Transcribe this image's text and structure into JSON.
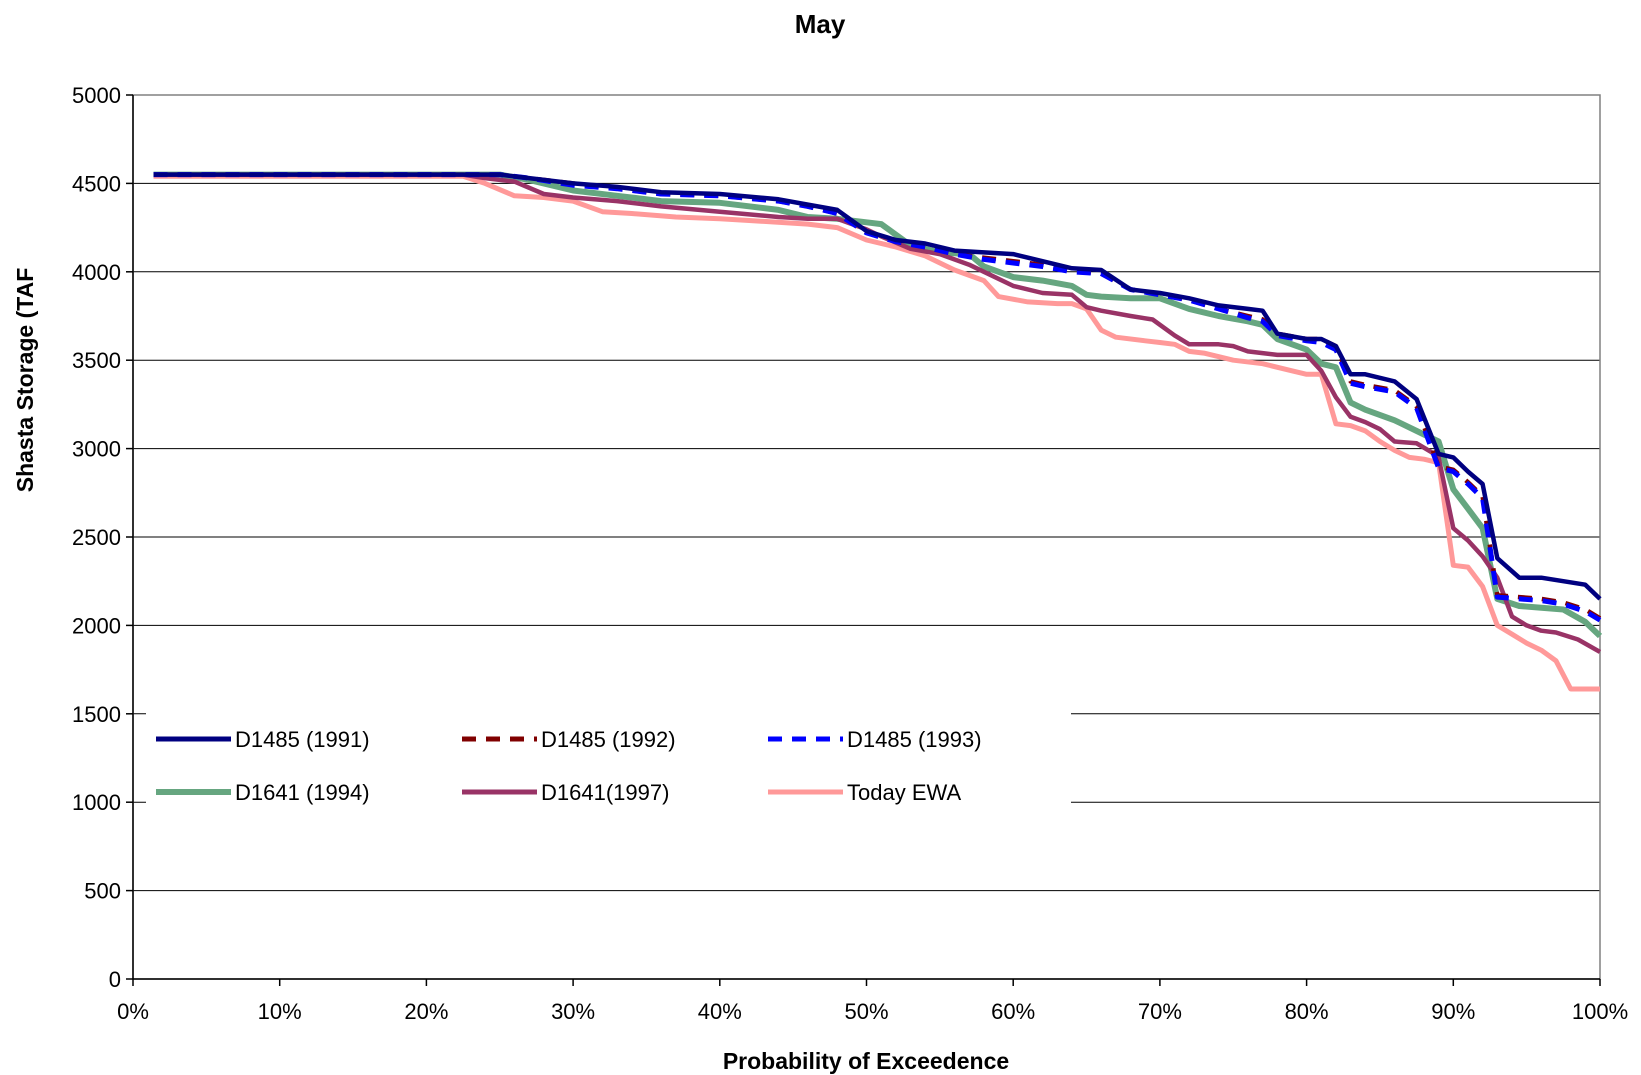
{
  "chart_data": {
    "type": "line",
    "title": "May",
    "xlabel": "Probability of Exceedence",
    "ylabel": "Shasta Storage (TAF",
    "xlim": [
      0,
      100
    ],
    "ylim": [
      0,
      5000
    ],
    "x_unit": "%",
    "x_ticks": [
      "0%",
      "10%",
      "20%",
      "30%",
      "40%",
      "50%",
      "60%",
      "70%",
      "80%",
      "90%",
      "100%"
    ],
    "y_ticks": [
      "0",
      "500",
      "1000",
      "1500",
      "2000",
      "2500",
      "3000",
      "3500",
      "4000",
      "4500",
      "5000"
    ],
    "grid": "horizontal",
    "legend_position": "lower-left, inside plot",
    "series": [
      {
        "name": "D1485 (1991)",
        "color": "#000080",
        "dash": "solid",
        "points": [
          [
            1.4,
            4550
          ],
          [
            25,
            4550
          ],
          [
            27,
            4530
          ],
          [
            30,
            4500
          ],
          [
            33,
            4480
          ],
          [
            36,
            4450
          ],
          [
            40,
            4440
          ],
          [
            44,
            4410
          ],
          [
            46,
            4380
          ],
          [
            48,
            4350
          ],
          [
            50,
            4230
          ],
          [
            52,
            4180
          ],
          [
            54,
            4160
          ],
          [
            56,
            4120
          ],
          [
            58,
            4110
          ],
          [
            60,
            4100
          ],
          [
            62,
            4060
          ],
          [
            64,
            4020
          ],
          [
            66,
            4010
          ],
          [
            68,
            3900
          ],
          [
            70,
            3880
          ],
          [
            72,
            3850
          ],
          [
            74,
            3810
          ],
          [
            76,
            3790
          ],
          [
            77,
            3780
          ],
          [
            78,
            3650
          ],
          [
            80,
            3620
          ],
          [
            81,
            3620
          ],
          [
            82,
            3580
          ],
          [
            83,
            3420
          ],
          [
            84,
            3420
          ],
          [
            86,
            3380
          ],
          [
            87.5,
            3280
          ],
          [
            89,
            2970
          ],
          [
            90,
            2950
          ],
          [
            91,
            2870
          ],
          [
            92,
            2800
          ],
          [
            93,
            2380
          ],
          [
            94.5,
            2270
          ],
          [
            96,
            2270
          ],
          [
            97.5,
            2250
          ],
          [
            99,
            2230
          ],
          [
            100,
            2150
          ]
        ]
      },
      {
        "name": "D1485 (1992)",
        "color": "#800000",
        "dash": "dashed",
        "points": [
          [
            1.4,
            4550
          ],
          [
            25,
            4550
          ],
          [
            27,
            4530
          ],
          [
            30,
            4500
          ],
          [
            33,
            4470
          ],
          [
            36,
            4440
          ],
          [
            40,
            4430
          ],
          [
            44,
            4400
          ],
          [
            46,
            4370
          ],
          [
            48,
            4330
          ],
          [
            50,
            4220
          ],
          [
            52,
            4170
          ],
          [
            54,
            4140
          ],
          [
            56,
            4100
          ],
          [
            58,
            4080
          ],
          [
            60,
            4060
          ],
          [
            62,
            4040
          ],
          [
            64,
            4010
          ],
          [
            66,
            3990
          ],
          [
            68,
            3900
          ],
          [
            70,
            3870
          ],
          [
            72,
            3840
          ],
          [
            74,
            3790
          ],
          [
            76,
            3750
          ],
          [
            77,
            3730
          ],
          [
            78,
            3650
          ],
          [
            80,
            3620
          ],
          [
            81,
            3620
          ],
          [
            82,
            3580
          ],
          [
            83,
            3380
          ],
          [
            84,
            3360
          ],
          [
            86,
            3330
          ],
          [
            87.5,
            3240
          ],
          [
            89,
            2900
          ],
          [
            90,
            2880
          ],
          [
            91,
            2810
          ],
          [
            92,
            2730
          ],
          [
            93,
            2170
          ],
          [
            94.5,
            2160
          ],
          [
            96,
            2150
          ],
          [
            97.5,
            2130
          ],
          [
            99,
            2090
          ],
          [
            100,
            2040
          ]
        ]
      },
      {
        "name": "D1485 (1993)",
        "color": "#0000FF",
        "dash": "dashed",
        "points": [
          [
            1.4,
            4550
          ],
          [
            25,
            4550
          ],
          [
            27,
            4530
          ],
          [
            30,
            4490
          ],
          [
            33,
            4470
          ],
          [
            36,
            4440
          ],
          [
            40,
            4430
          ],
          [
            44,
            4400
          ],
          [
            46,
            4370
          ],
          [
            48,
            4330
          ],
          [
            50,
            4220
          ],
          [
            52,
            4170
          ],
          [
            54,
            4140
          ],
          [
            56,
            4100
          ],
          [
            58,
            4070
          ],
          [
            60,
            4050
          ],
          [
            62,
            4030
          ],
          [
            64,
            4000
          ],
          [
            66,
            3990
          ],
          [
            68,
            3900
          ],
          [
            70,
            3870
          ],
          [
            72,
            3840
          ],
          [
            74,
            3790
          ],
          [
            76,
            3740
          ],
          [
            77,
            3720
          ],
          [
            78,
            3640
          ],
          [
            80,
            3610
          ],
          [
            81,
            3600
          ],
          [
            82,
            3560
          ],
          [
            83,
            3370
          ],
          [
            84,
            3350
          ],
          [
            86,
            3320
          ],
          [
            87.5,
            3230
          ],
          [
            89,
            2890
          ],
          [
            90,
            2870
          ],
          [
            91,
            2800
          ],
          [
            92,
            2720
          ],
          [
            93,
            2160
          ],
          [
            94.5,
            2150
          ],
          [
            96,
            2140
          ],
          [
            97.5,
            2120
          ],
          [
            99,
            2080
          ],
          [
            100,
            2030
          ]
        ]
      },
      {
        "name": "D1641 (1994)",
        "color": "#66A680",
        "dash": "solid",
        "points": [
          [
            1.4,
            4550
          ],
          [
            25,
            4550
          ],
          [
            27,
            4520
          ],
          [
            30,
            4460
          ],
          [
            33,
            4430
          ],
          [
            36,
            4400
          ],
          [
            40,
            4390
          ],
          [
            44,
            4350
          ],
          [
            46,
            4310
          ],
          [
            48,
            4300
          ],
          [
            50,
            4280
          ],
          [
            51,
            4270
          ],
          [
            53,
            4150
          ],
          [
            55,
            4110
          ],
          [
            57,
            4100
          ],
          [
            58,
            4030
          ],
          [
            60,
            3970
          ],
          [
            62,
            3950
          ],
          [
            64,
            3920
          ],
          [
            65,
            3870
          ],
          [
            66,
            3860
          ],
          [
            68,
            3850
          ],
          [
            70,
            3850
          ],
          [
            72,
            3790
          ],
          [
            74,
            3750
          ],
          [
            76,
            3720
          ],
          [
            77,
            3700
          ],
          [
            78,
            3620
          ],
          [
            80,
            3560
          ],
          [
            81,
            3480
          ],
          [
            82,
            3460
          ],
          [
            83,
            3260
          ],
          [
            84,
            3220
          ],
          [
            86,
            3160
          ],
          [
            88,
            3080
          ],
          [
            89,
            3040
          ],
          [
            90,
            2770
          ],
          [
            91,
            2660
          ],
          [
            92,
            2550
          ],
          [
            93,
            2150
          ],
          [
            94.5,
            2110
          ],
          [
            96,
            2100
          ],
          [
            97.5,
            2090
          ],
          [
            99,
            2020
          ],
          [
            100,
            1940
          ]
        ]
      },
      {
        "name": "D1641(1997)",
        "color": "#993366",
        "dash": "solid",
        "points": [
          [
            1.4,
            4550
          ],
          [
            22.5,
            4550
          ],
          [
            24,
            4530
          ],
          [
            26,
            4510
          ],
          [
            28,
            4440
          ],
          [
            30,
            4420
          ],
          [
            33,
            4400
          ],
          [
            36,
            4370
          ],
          [
            40,
            4340
          ],
          [
            44,
            4310
          ],
          [
            46,
            4300
          ],
          [
            48,
            4300
          ],
          [
            50,
            4240
          ],
          [
            51,
            4200
          ],
          [
            53,
            4130
          ],
          [
            55,
            4100
          ],
          [
            57,
            4040
          ],
          [
            58,
            4000
          ],
          [
            60,
            3920
          ],
          [
            62,
            3880
          ],
          [
            64,
            3870
          ],
          [
            65,
            3800
          ],
          [
            66,
            3780
          ],
          [
            68,
            3750
          ],
          [
            69.5,
            3730
          ],
          [
            71,
            3640
          ],
          [
            72,
            3590
          ],
          [
            74,
            3590
          ],
          [
            75,
            3580
          ],
          [
            76,
            3550
          ],
          [
            77,
            3540
          ],
          [
            78,
            3530
          ],
          [
            80,
            3530
          ],
          [
            81,
            3440
          ],
          [
            82,
            3290
          ],
          [
            83,
            3180
          ],
          [
            84,
            3150
          ],
          [
            85,
            3110
          ],
          [
            86,
            3040
          ],
          [
            87.5,
            3030
          ],
          [
            88.5,
            2980
          ],
          [
            89,
            2950
          ],
          [
            90,
            2550
          ],
          [
            91,
            2480
          ],
          [
            92,
            2390
          ],
          [
            93,
            2270
          ],
          [
            94,
            2050
          ],
          [
            95,
            2000
          ],
          [
            96,
            1970
          ],
          [
            97,
            1960
          ],
          [
            98.5,
            1920
          ],
          [
            100,
            1850
          ]
        ]
      },
      {
        "name": "Today EWA",
        "color": "#FF9999",
        "dash": "solid",
        "points": [
          [
            1.4,
            4540
          ],
          [
            22.5,
            4540
          ],
          [
            24,
            4500
          ],
          [
            26,
            4430
          ],
          [
            28,
            4420
          ],
          [
            30,
            4400
          ],
          [
            32,
            4340
          ],
          [
            34,
            4330
          ],
          [
            37,
            4310
          ],
          [
            40,
            4300
          ],
          [
            42,
            4290
          ],
          [
            46,
            4270
          ],
          [
            48,
            4250
          ],
          [
            50,
            4180
          ],
          [
            52,
            4140
          ],
          [
            54,
            4090
          ],
          [
            56,
            4010
          ],
          [
            58,
            3950
          ],
          [
            59,
            3860
          ],
          [
            61,
            3830
          ],
          [
            63,
            3820
          ],
          [
            64,
            3820
          ],
          [
            65,
            3790
          ],
          [
            66,
            3670
          ],
          [
            67,
            3630
          ],
          [
            69,
            3610
          ],
          [
            70,
            3600
          ],
          [
            71,
            3590
          ],
          [
            72,
            3550
          ],
          [
            73,
            3540
          ],
          [
            75,
            3500
          ],
          [
            77,
            3480
          ],
          [
            79,
            3440
          ],
          [
            80,
            3420
          ],
          [
            81,
            3420
          ],
          [
            82,
            3140
          ],
          [
            83,
            3130
          ],
          [
            84,
            3100
          ],
          [
            85,
            3040
          ],
          [
            86,
            2990
          ],
          [
            87,
            2950
          ],
          [
            88,
            2940
          ],
          [
            89,
            2920
          ],
          [
            90,
            2340
          ],
          [
            91,
            2330
          ],
          [
            92,
            2220
          ],
          [
            93,
            2000
          ],
          [
            94,
            1950
          ],
          [
            95,
            1900
          ],
          [
            96,
            1860
          ],
          [
            97,
            1800
          ],
          [
            98,
            1640
          ],
          [
            100,
            1640
          ]
        ]
      }
    ]
  }
}
